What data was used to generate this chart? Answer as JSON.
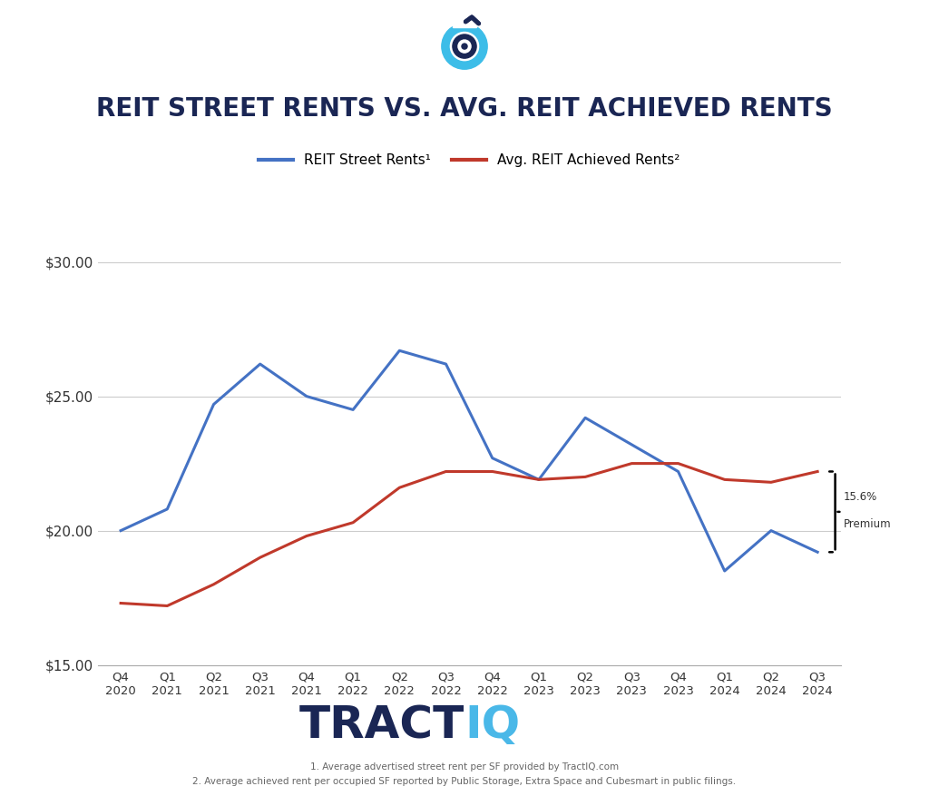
{
  "title": "REIT STREET RENTS VS. AVG. REIT ACHIEVED RENTS",
  "x_labels": [
    "Q4\n2020",
    "Q1\n2021",
    "Q2\n2021",
    "Q3\n2021",
    "Q4\n2021",
    "Q1\n2022",
    "Q2\n2022",
    "Q3\n2022",
    "Q4\n2022",
    "Q1\n2023",
    "Q2\n2023",
    "Q3\n2023",
    "Q4\n2023",
    "Q1\n2024",
    "Q2\n2024",
    "Q3\n2024"
  ],
  "street_rents": [
    20.0,
    20.8,
    24.7,
    26.2,
    25.0,
    24.5,
    26.7,
    26.2,
    22.7,
    21.9,
    24.2,
    23.2,
    22.2,
    18.5,
    20.0,
    19.2
  ],
  "achieved_rents": [
    17.3,
    17.2,
    18.0,
    19.0,
    19.8,
    20.3,
    21.6,
    22.2,
    22.2,
    21.9,
    22.0,
    22.5,
    22.5,
    21.9,
    21.8,
    22.2
  ],
  "street_color": "#4472C4",
  "achieved_color": "#C0392B",
  "ylim_min": 15.0,
  "ylim_max": 30.0,
  "yticks": [
    15.0,
    20.0,
    25.0,
    30.0
  ],
  "legend_label_street": "REIT Street Rents¹",
  "legend_label_achieved": "Avg. REIT Achieved Rents²",
  "premium_line1": "15.6%",
  "premium_line2": "Premium",
  "footnote1": "1. Average advertised street rent per SF provided by TractIQ.com",
  "footnote2": "2. Average achieved rent per occupied SF reported by Public Storage, Extra Space and Cubesmart in public filings.",
  "tractiq_color_tract": "#1a2654",
  "tractiq_color_iq": "#4ab8e8",
  "background_color": "#ffffff",
  "title_color": "#1a2654",
  "grid_color": "#cccccc"
}
